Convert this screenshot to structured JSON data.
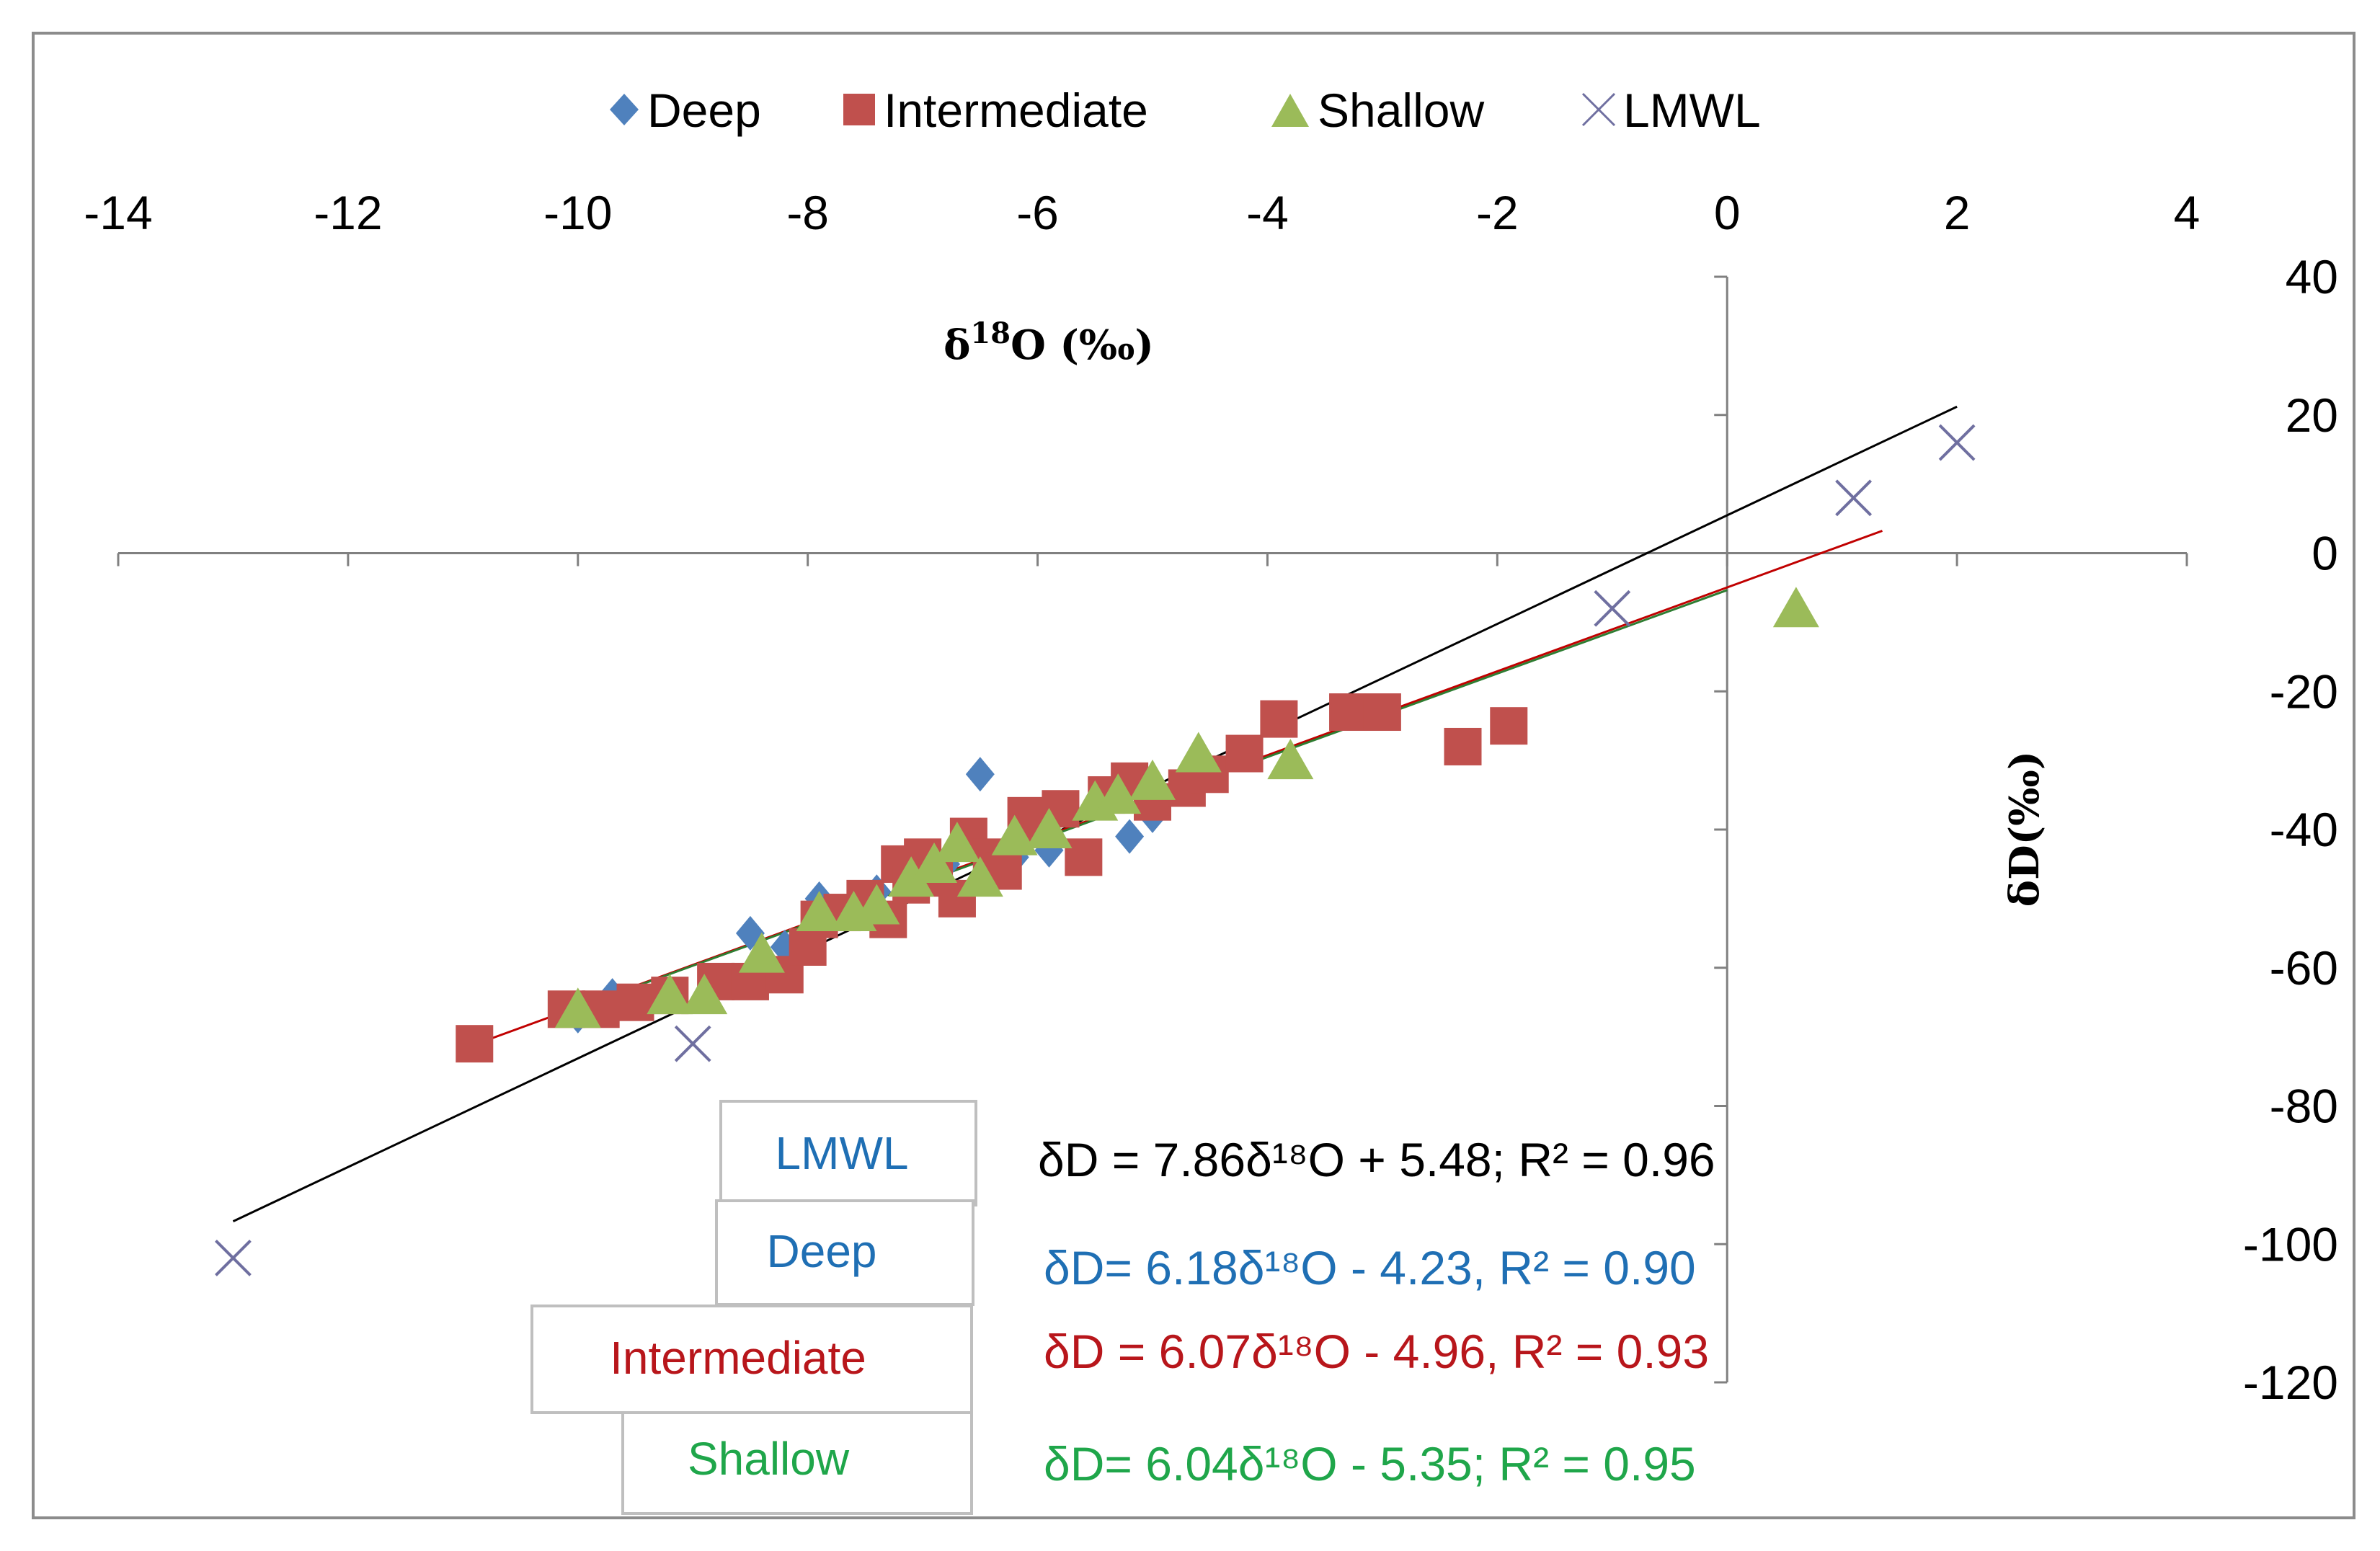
{
  "chart_data": {
    "type": "scatter",
    "xlabel": "δ18O (‰)",
    "ylabel": "δD(‰)",
    "xlim": [
      -14,
      4
    ],
    "ylim": [
      -120,
      40
    ],
    "xticks": [
      -14,
      -12,
      -10,
      -8,
      -6,
      -4,
      -2,
      0,
      2,
      4
    ],
    "yticks": [
      40,
      20,
      0,
      -20,
      -40,
      -60,
      -80,
      -100,
      -120
    ],
    "x_tick_labels": [
      "-14",
      "-12",
      "-10",
      "-8",
      "-6",
      "-4",
      "-2",
      "0",
      "2",
      "4"
    ],
    "y_tick_labels": [
      "40",
      "20",
      "0",
      "-20",
      "-40",
      "-60",
      "-80",
      "-100",
      "-120"
    ],
    "legend": [
      "Deep",
      "Intermediate",
      "Shallow",
      "LMWL"
    ],
    "legend_position": "top",
    "series": [
      {
        "name": "Deep",
        "marker": "diamond",
        "color": "#4F81BD",
        "points": [
          [
            -10,
            -67
          ],
          [
            -9.7,
            -64
          ],
          [
            -8.5,
            -55
          ],
          [
            -7.9,
            -50
          ],
          [
            -7.7,
            -52
          ],
          [
            -7.4,
            -49
          ],
          [
            -7.0,
            -48
          ],
          [
            -6.8,
            -45
          ],
          [
            -6.5,
            -32
          ],
          [
            -6.2,
            -44
          ],
          [
            -5.9,
            -43
          ],
          [
            -5.2,
            -41
          ],
          [
            -5.0,
            -38
          ],
          [
            -8.2,
            -57
          ]
        ]
      },
      {
        "name": "Intermediate",
        "marker": "square",
        "color": "#C0504D",
        "points": [
          [
            -10.9,
            -71
          ],
          [
            -10.1,
            -66
          ],
          [
            -9.8,
            -66
          ],
          [
            -9.5,
            -65
          ],
          [
            -9.2,
            -64
          ],
          [
            -8.8,
            -62
          ],
          [
            -8.5,
            -62
          ],
          [
            -8.2,
            -61
          ],
          [
            -8.0,
            -57
          ],
          [
            -7.9,
            -53
          ],
          [
            -7.7,
            -52
          ],
          [
            -7.5,
            -50
          ],
          [
            -7.3,
            -53
          ],
          [
            -7.2,
            -45
          ],
          [
            -7.1,
            -48
          ],
          [
            -7.0,
            -44
          ],
          [
            -6.9,
            -47
          ],
          [
            -6.7,
            -50
          ],
          [
            -6.6,
            -41
          ],
          [
            -6.4,
            -44
          ],
          [
            -6.3,
            -46
          ],
          [
            -6.1,
            -38
          ],
          [
            -6.0,
            -40
          ],
          [
            -5.8,
            -37
          ],
          [
            -5.6,
            -44
          ],
          [
            -5.4,
            -35
          ],
          [
            -5.2,
            -33
          ],
          [
            -5.0,
            -36
          ],
          [
            -4.7,
            -34
          ],
          [
            -4.5,
            -32
          ],
          [
            -4.2,
            -29
          ],
          [
            -3.9,
            -24
          ],
          [
            -3.3,
            -23
          ],
          [
            -3.0,
            -23
          ],
          [
            -2.3,
            -28
          ],
          [
            -1.9,
            -25
          ]
        ]
      },
      {
        "name": "Shallow",
        "marker": "triangle",
        "color": "#9BBB59",
        "points": [
          [
            -10.0,
            -66
          ],
          [
            -9.2,
            -64
          ],
          [
            -8.9,
            -64
          ],
          [
            -8.4,
            -58
          ],
          [
            -7.9,
            -52
          ],
          [
            -7.6,
            -52
          ],
          [
            -7.4,
            -51
          ],
          [
            -7.1,
            -47
          ],
          [
            -6.9,
            -45
          ],
          [
            -6.7,
            -42
          ],
          [
            -6.5,
            -47
          ],
          [
            -6.2,
            -41
          ],
          [
            -5.9,
            -40
          ],
          [
            -5.5,
            -36
          ],
          [
            -5.3,
            -35
          ],
          [
            -5.0,
            -33
          ],
          [
            -4.6,
            -29
          ],
          [
            -3.8,
            -30
          ],
          [
            0.6,
            -8
          ]
        ]
      },
      {
        "name": "LMWL",
        "marker": "x",
        "color": "#6F6FA0",
        "points": [
          [
            -13.0,
            -102
          ],
          [
            -9.0,
            -71
          ],
          [
            -1.0,
            -8
          ],
          [
            1.1,
            8
          ],
          [
            2.0,
            16
          ]
        ]
      }
    ],
    "fit_lines": [
      {
        "name": "LMWL",
        "color": "#000000",
        "x_range": [
          -13.0,
          2.0
        ],
        "slope": 7.86,
        "intercept": 5.48
      },
      {
        "name": "Intermediate",
        "color": "#C00000",
        "x_range": [
          -10.9,
          1.35
        ],
        "slope": 6.07,
        "intercept": -4.96
      },
      {
        "name": "Shallow",
        "color": "#2E7D32",
        "x_range": [
          -10.0,
          0.0
        ],
        "slope": 6.04,
        "intercept": -5.35
      }
    ],
    "annotations": [
      {
        "name": "LMWL",
        "name_color": "#1F6FB4",
        "equation": "δD = 7.86δ¹⁸O + 5.48; R² = 0.96",
        "equation_color": "#000000"
      },
      {
        "name": "Deep",
        "name_color": "#1F6FB4",
        "equation": "δD= 6.18δ¹⁸O - 4.23, R² = 0.90",
        "equation_color": "#1F6FB4"
      },
      {
        "name": "Intermediate",
        "name_color": "#B8161B",
        "equation": "δD = 6.07δ¹⁸O - 4.96, R² = 0.93",
        "equation_color": "#B8161B"
      },
      {
        "name": "Shallow",
        "name_color": "#1FA64A",
        "equation": "δD= 6.04δ¹⁸O - 5.35; R² = 0.95",
        "equation_color": "#1FA64A"
      }
    ]
  }
}
